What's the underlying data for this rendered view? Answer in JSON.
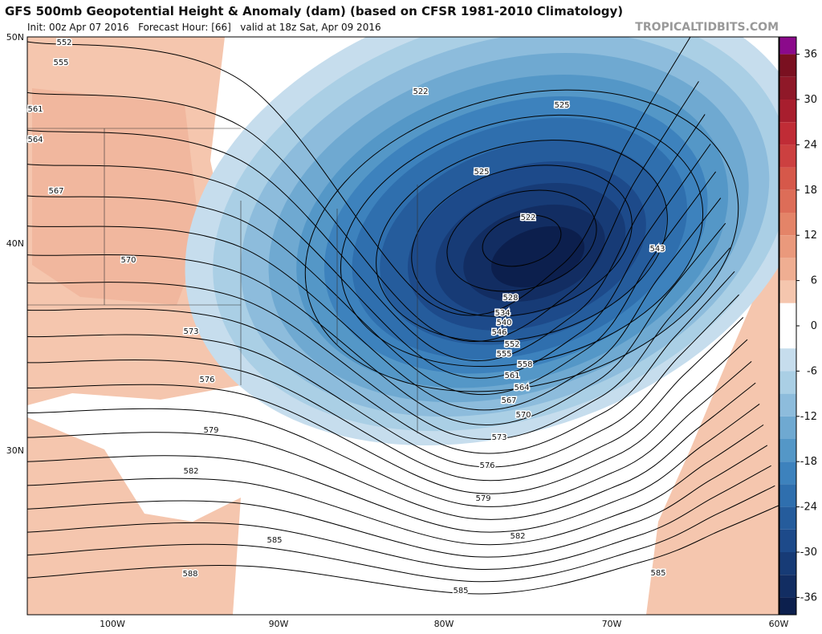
{
  "header": {
    "title": "GFS 500mb Geopotential Height & Anomaly (dam) (based on CFSR 1981-2010 Climatology)",
    "subtitle": "Init: 00z Apr 07 2016   Forecast Hour: [66]   valid at 18z Sat, Apr 09 2016",
    "watermark": "TROPICALTIDBITS.COM"
  },
  "map": {
    "lat_labels": [
      "50N",
      "40N",
      "30N"
    ],
    "lon_labels": [
      "100W",
      "90W",
      "80W",
      "70W",
      "60W"
    ],
    "contour_labels": [
      "552",
      "555",
      "561",
      "564",
      "567",
      "570",
      "573",
      "576",
      "579",
      "582",
      "585",
      "588",
      "522",
      "525",
      "525",
      "522",
      "543",
      "528",
      "534",
      "540",
      "546",
      "552",
      "555",
      "558",
      "561",
      "564",
      "567",
      "570",
      "573",
      "576",
      "579",
      "582",
      "585",
      "585"
    ]
  },
  "colorbar": {
    "ticks": [
      36,
      30,
      24,
      18,
      12,
      6,
      0,
      -6,
      -12,
      -18,
      -24,
      -30,
      -36
    ],
    "colors": [
      "#8b0a8b",
      "#7a1020",
      "#8f1828",
      "#a81e2e",
      "#c02c36",
      "#cc4040",
      "#d6584a",
      "#dd6d58",
      "#e48468",
      "#ea997c",
      "#efae92",
      "#f5c6ae",
      "#ffffff",
      "#ffffff",
      "#c6dded",
      "#aacfe5",
      "#8dbcdc",
      "#6fa9d1",
      "#5497c7",
      "#3d82bd",
      "#2f6fae",
      "#255c9c",
      "#1d4a8a",
      "#173b76",
      "#122d62",
      "#0c1f4d"
    ]
  }
}
